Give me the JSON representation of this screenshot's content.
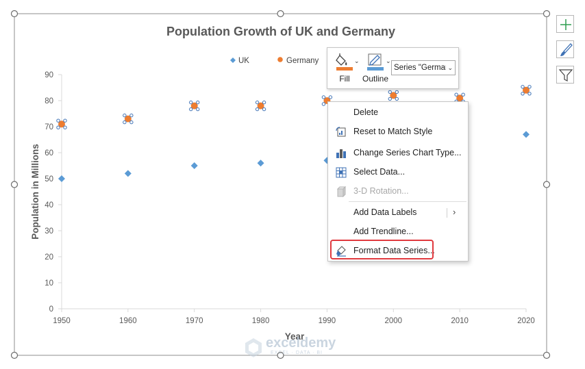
{
  "chart_data": {
    "type": "scatter",
    "title": "Population Growth of UK and Germany",
    "xlabel": "Year",
    "ylabel": "Population in Millions",
    "xlim": [
      1950,
      2020
    ],
    "ylim": [
      0,
      90
    ],
    "x_ticks": [
      1950,
      1960,
      1970,
      1980,
      1990,
      2000,
      2010,
      2020
    ],
    "y_ticks": [
      0,
      10,
      20,
      30,
      40,
      50,
      60,
      70,
      80,
      90
    ],
    "grid": false,
    "legend_position": "top",
    "series": [
      {
        "name": "UK",
        "color": "#5b9bd5",
        "marker": "diamond",
        "x": [
          1950,
          1960,
          1970,
          1980,
          1990,
          2000,
          2010,
          2020
        ],
        "y": [
          50,
          52,
          55,
          56,
          57,
          59,
          63,
          67
        ]
      },
      {
        "name": "Germany",
        "color": "#ed7d31",
        "marker": "circle",
        "selected": true,
        "x": [
          1950,
          1960,
          1970,
          1980,
          1990,
          2000,
          2010,
          2020
        ],
        "y": [
          71,
          73,
          78,
          78,
          80,
          82,
          81,
          84
        ]
      }
    ]
  },
  "mini_toolbar": {
    "fill_label": "Fill",
    "outline_label": "Outline",
    "series_select_value": "Series \"Germar",
    "fill_color": "#ed7d31",
    "outline_color": "#5b9bd5"
  },
  "context_menu": {
    "items": [
      {
        "label": "Delete",
        "icon": "delete-icon",
        "disabled": false
      },
      {
        "label": "Reset to Match Style",
        "icon": "reset-style-icon",
        "disabled": false
      },
      {
        "label": "Change Series Chart Type...",
        "icon": "chart-type-icon",
        "disabled": false
      },
      {
        "label": "Select Data...",
        "icon": "select-data-icon",
        "disabled": false
      },
      {
        "label": "3-D Rotation...",
        "icon": "rotation-3d-icon",
        "disabled": true
      },
      {
        "label": "Add Data Labels",
        "icon": "",
        "disabled": false,
        "submenu": true
      },
      {
        "label": "Add Trendline...",
        "icon": "",
        "disabled": false
      },
      {
        "label": "Format Data Series...",
        "icon": "format-series-icon",
        "disabled": false,
        "highlighted": true
      }
    ],
    "highlight_color": "#e0393e"
  },
  "side_buttons": [
    {
      "icon": "plus-icon",
      "name": "chart-elements-button"
    },
    {
      "icon": "brush-icon",
      "name": "chart-styles-button"
    },
    {
      "icon": "filter-icon",
      "name": "chart-filters-button"
    }
  ],
  "watermark": {
    "name": "exceldemy",
    "tagline": "EXCEL · DATA · BI"
  }
}
